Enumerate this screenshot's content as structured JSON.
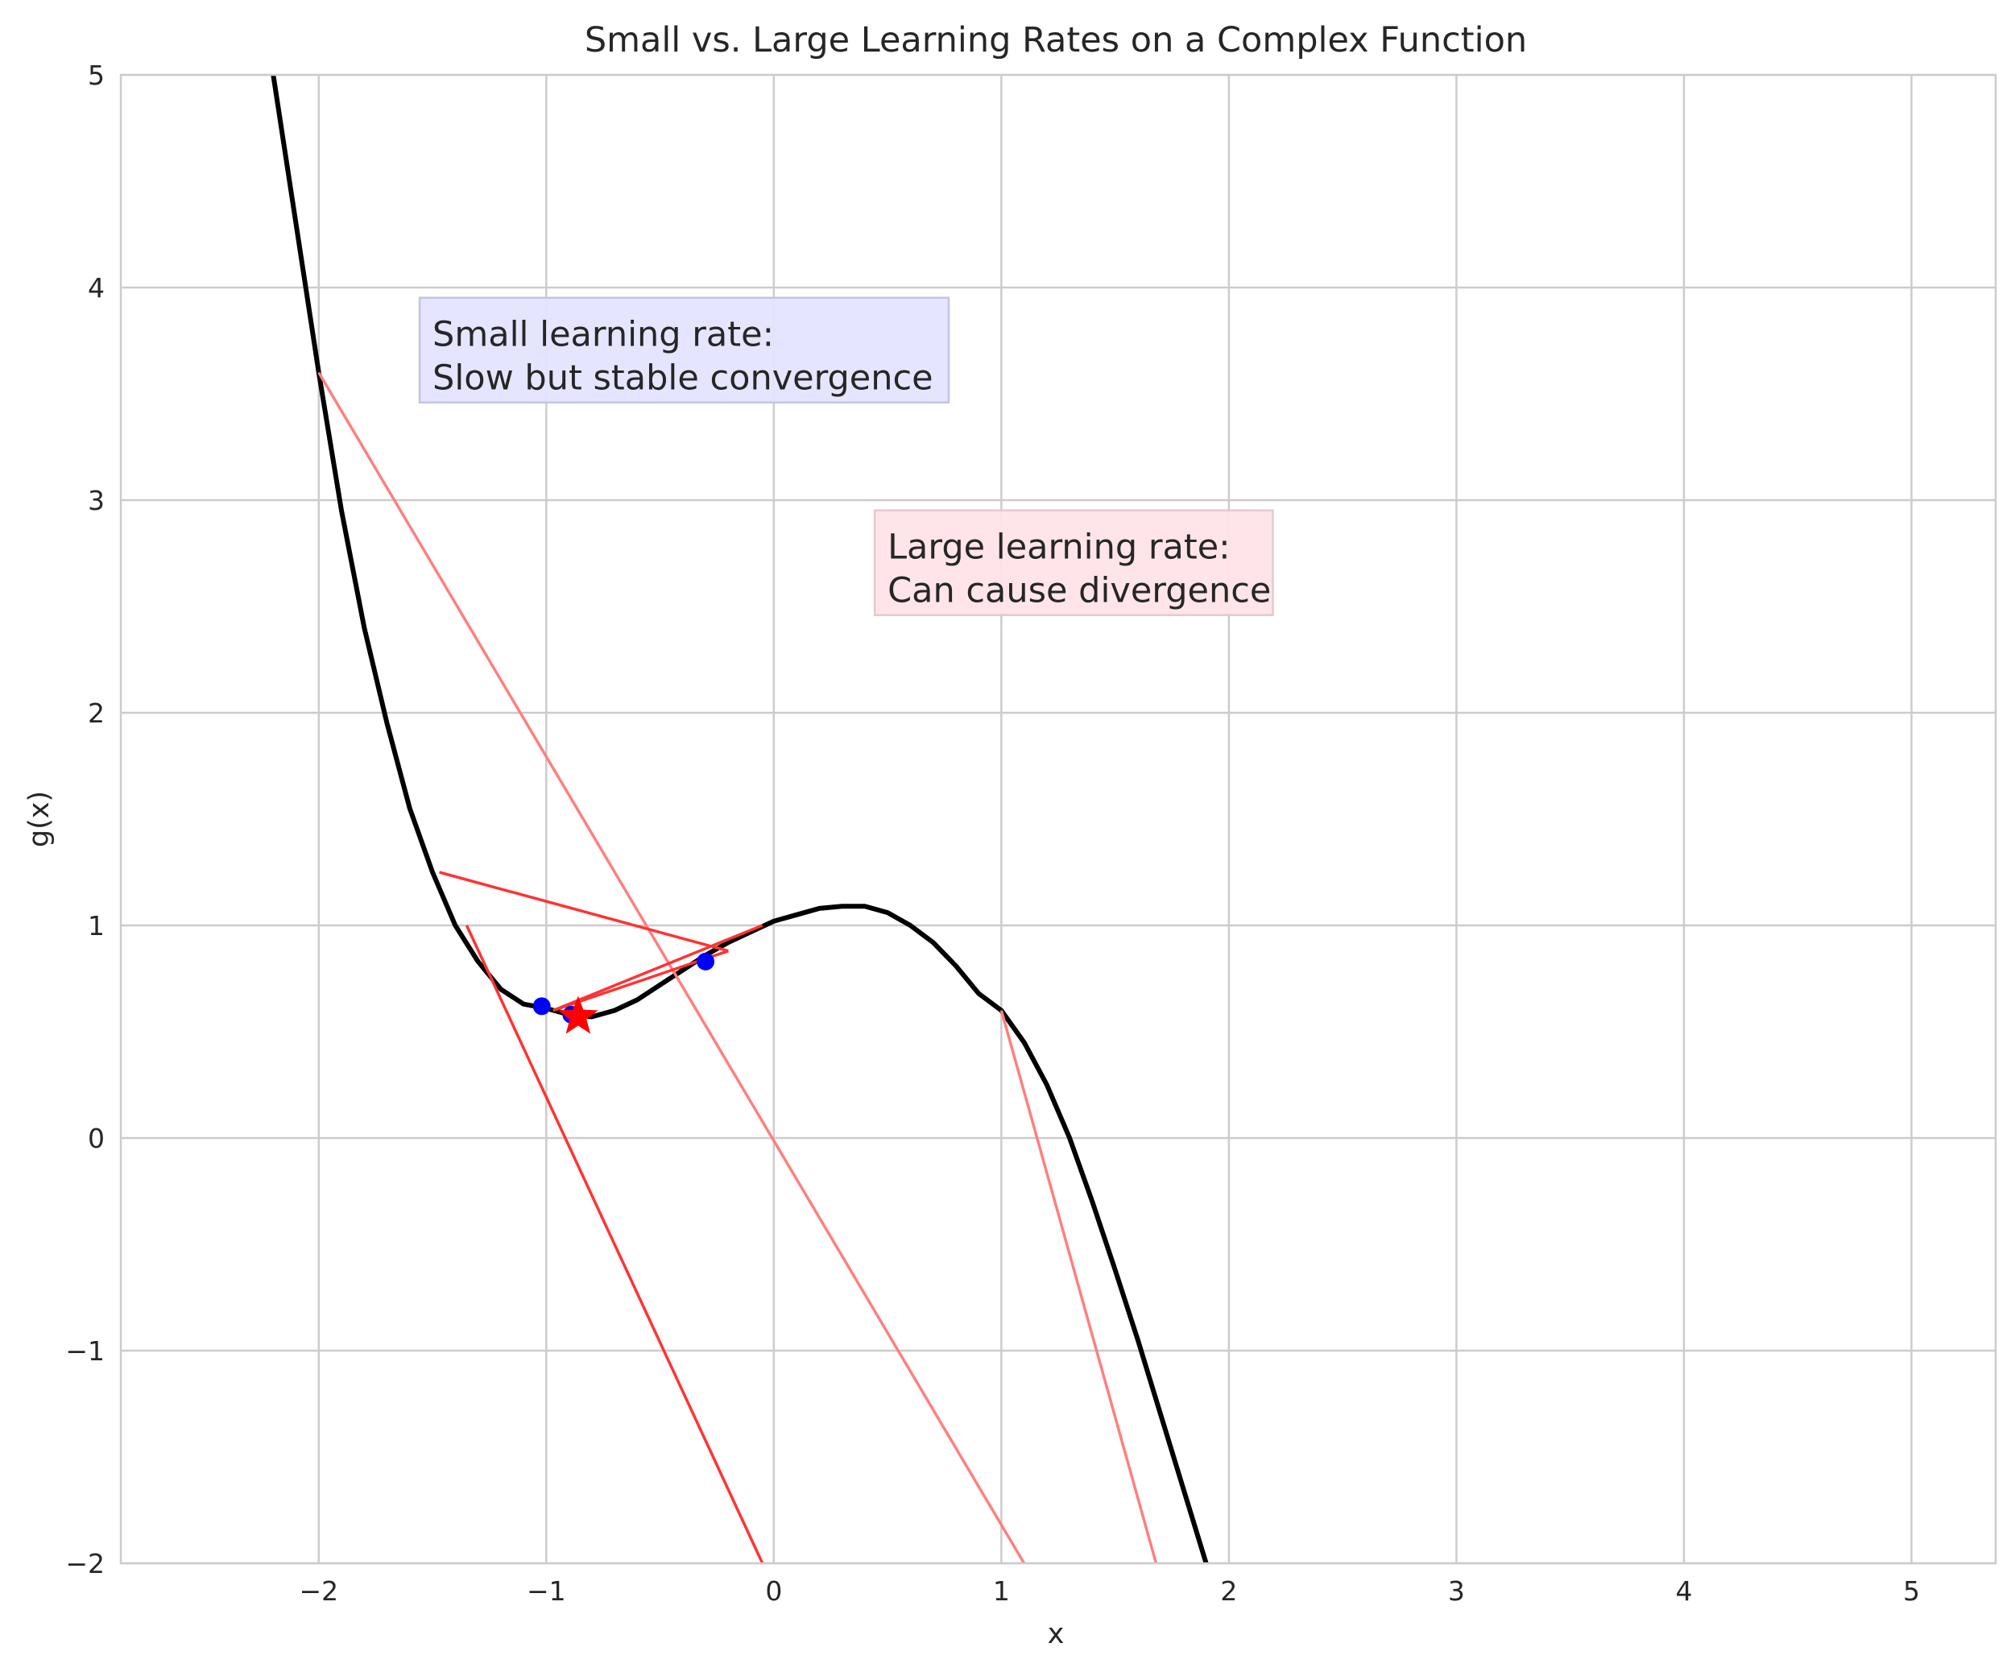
{
  "chart_data": {
    "type": "line",
    "title": "Small vs. Large Learning Rates on a Complex Function",
    "xlabel": "x",
    "ylabel": "g(x)",
    "xlim": [
      -2.87,
      5.37
    ],
    "ylim": [
      -2,
      5
    ],
    "grid": true,
    "x_ticks": [
      -2,
      -1,
      0,
      1,
      2,
      3,
      4,
      5
    ],
    "x_tick_labels": [
      "−2",
      "−1",
      "0",
      "1",
      "2",
      "3",
      "4",
      "5"
    ],
    "y_ticks": [
      -2,
      -1,
      0,
      1,
      2,
      3,
      4,
      5
    ],
    "y_tick_labels": [
      "−2",
      "−1",
      "0",
      "1",
      "2",
      "3",
      "4",
      "5"
    ],
    "function": {
      "name": "g(x)",
      "x": [
        -2.2,
        -2.1,
        -2.0,
        -1.9,
        -1.8,
        -1.7,
        -1.6,
        -1.5,
        -1.4,
        -1.3,
        -1.2,
        -1.1,
        -1.0,
        -0.9,
        -0.8,
        -0.7,
        -0.6,
        -0.5,
        -0.4,
        -0.3,
        -0.2,
        -0.1,
        0.0,
        0.1,
        0.2,
        0.3,
        0.4,
        0.5,
        0.6,
        0.7,
        0.8,
        0.9,
        1.0,
        1.1,
        1.2,
        1.3,
        1.4,
        1.5,
        1.6,
        1.7,
        1.8,
        1.9
      ],
      "y": [
        5.0,
        4.3,
        3.6,
        2.95,
        2.4,
        1.95,
        1.55,
        1.25,
        1.0,
        0.83,
        0.7,
        0.63,
        0.61,
        0.58,
        0.57,
        0.6,
        0.65,
        0.72,
        0.79,
        0.86,
        0.92,
        0.97,
        1.02,
        1.05,
        1.08,
        1.09,
        1.09,
        1.06,
        1.0,
        0.92,
        0.81,
        0.68,
        0.6,
        0.45,
        0.25,
        0.0,
        -0.3,
        -0.62,
        -0.95,
        -1.3,
        -1.65,
        -2.0
      ],
      "color": "#000000"
    },
    "small_lr_path": {
      "x": [
        -1.02,
        -0.89,
        -0.3
      ],
      "y": [
        0.62,
        0.58,
        0.83
      ],
      "color": "#0000ff"
    },
    "large_lr_segments": [
      {
        "x": [
          -2.0,
          1.1
        ],
        "y": [
          3.6,
          -2.0
        ],
        "color": "#ff7f7f"
      },
      {
        "x": [
          1.0,
          1.68
        ],
        "y": [
          0.6,
          -2.0
        ],
        "color": "#ff7f7f"
      },
      {
        "x": [
          -1.47,
          -0.2
        ],
        "y": [
          1.25,
          0.88
        ],
        "color": "#ff3333"
      },
      {
        "x": [
          -0.2,
          -0.97
        ],
        "y": [
          0.88,
          0.6
        ],
        "color": "#ff3333"
      },
      {
        "x": [
          -0.97,
          -0.05
        ],
        "y": [
          0.6,
          1.0
        ],
        "color": "#ff3333"
      },
      {
        "x": [
          -1.35,
          -0.05
        ],
        "y": [
          1.0,
          -2.0
        ],
        "color": "#ff3333"
      }
    ],
    "minimum_marker": {
      "x": -0.86,
      "y": 0.57,
      "color": "#ff0000",
      "shape": "star"
    },
    "annotations": [
      {
        "text": [
          "Small learning rate:",
          "Slow but stable convergence"
        ],
        "x": -1.5,
        "y": 3.52,
        "bg": "#e4e4ff",
        "border": "#c4c4e4"
      },
      {
        "text": [
          "Large learning rate:",
          "Can cause divergence"
        ],
        "x": 0.5,
        "y": 2.52,
        "bg": "#ffe4e8",
        "border": "#e6c9cd"
      }
    ]
  }
}
